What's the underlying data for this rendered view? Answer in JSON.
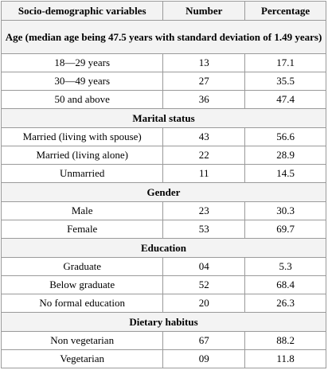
{
  "header": {
    "variables": "Socio-demographic variables",
    "number": "Number",
    "percentage": "Percentage"
  },
  "sections": [
    {
      "title": "Age (median age being 47.5 years with standard deviation of 1.49 years)",
      "rows": [
        {
          "label": "18—29 years",
          "number": "13",
          "percentage": "17.1"
        },
        {
          "label": "30—49 years",
          "number": "27",
          "percentage": "35.5"
        },
        {
          "label": "50 and above",
          "number": "36",
          "percentage": "47.4"
        }
      ]
    },
    {
      "title": "Marital status",
      "rows": [
        {
          "label": "Married (living with spouse)",
          "number": "43",
          "percentage": "56.6"
        },
        {
          "label": "Married (living alone)",
          "number": "22",
          "percentage": "28.9"
        },
        {
          "label": "Unmarried",
          "number": "11",
          "percentage": "14.5"
        }
      ]
    },
    {
      "title": "Gender",
      "rows": [
        {
          "label": "Male",
          "number": "23",
          "percentage": "30.3"
        },
        {
          "label": "Female",
          "number": "53",
          "percentage": "69.7"
        }
      ]
    },
    {
      "title": "Education",
      "rows": [
        {
          "label": "Graduate",
          "number": "04",
          "percentage": "5.3"
        },
        {
          "label": "Below graduate",
          "number": "52",
          "percentage": "68.4"
        },
        {
          "label": "No formal education",
          "number": "20",
          "percentage": "26.3"
        }
      ]
    },
    {
      "title": "Dietary habitus",
      "rows": [
        {
          "label": "Non vegetarian",
          "number": "67",
          "percentage": "88.2"
        },
        {
          "label": "Vegetarian",
          "number": "09",
          "percentage": "11.8"
        }
      ]
    }
  ]
}
